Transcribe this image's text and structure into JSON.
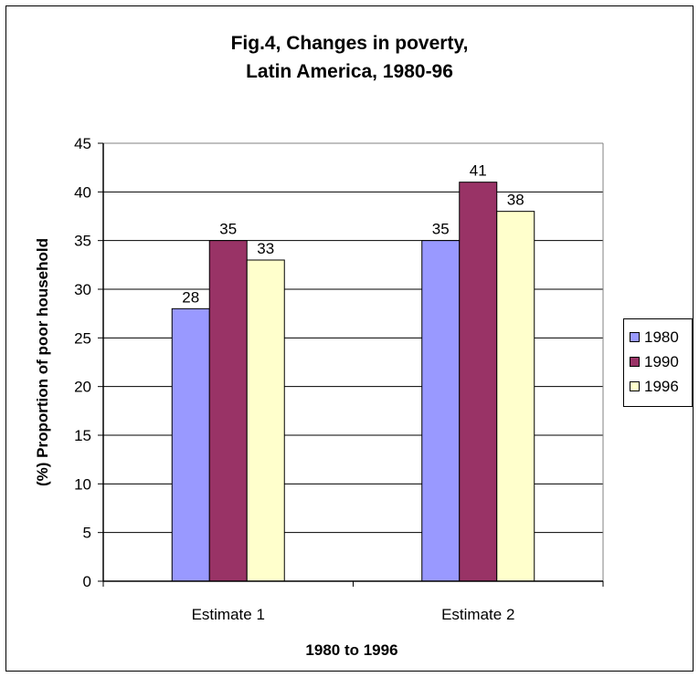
{
  "chart_data": {
    "type": "bar",
    "title_lines": [
      "Fig.4, Changes in poverty,",
      "Latin America, 1980-96"
    ],
    "xlabel": "1980 to 1996",
    "ylabel": "(%) Proportion of poor household",
    "categories": [
      "Estimate 1",
      "Estimate 2"
    ],
    "series": [
      {
        "name": "1980",
        "values": [
          28,
          35
        ],
        "color": "#9999ff"
      },
      {
        "name": "1990",
        "values": [
          35,
          41
        ],
        "color": "#993366"
      },
      {
        "name": "1996",
        "values": [
          33,
          38
        ],
        "color": "#ffffcc"
      }
    ],
    "ylim": [
      0,
      45
    ],
    "yticks": [
      0,
      5,
      10,
      15,
      20,
      25,
      30,
      35,
      40,
      45
    ],
    "grid": true,
    "legend_position": "right",
    "plot_background": "#ffffff"
  }
}
